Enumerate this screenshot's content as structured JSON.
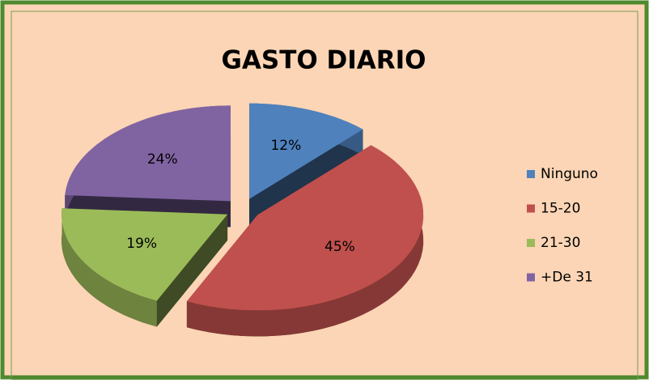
{
  "chart_data": {
    "type": "pie",
    "title": "GASTO DIARIO",
    "categories": [
      "Ninguno",
      "15-20",
      "21-30",
      "+De 31"
    ],
    "values": [
      12,
      45,
      19,
      24
    ],
    "value_labels": [
      "12%",
      "45%",
      "19%",
      "24%"
    ],
    "colors": [
      "#4f81bd",
      "#c0504d",
      "#9bbb59",
      "#8064a2"
    ],
    "legend": "right"
  }
}
